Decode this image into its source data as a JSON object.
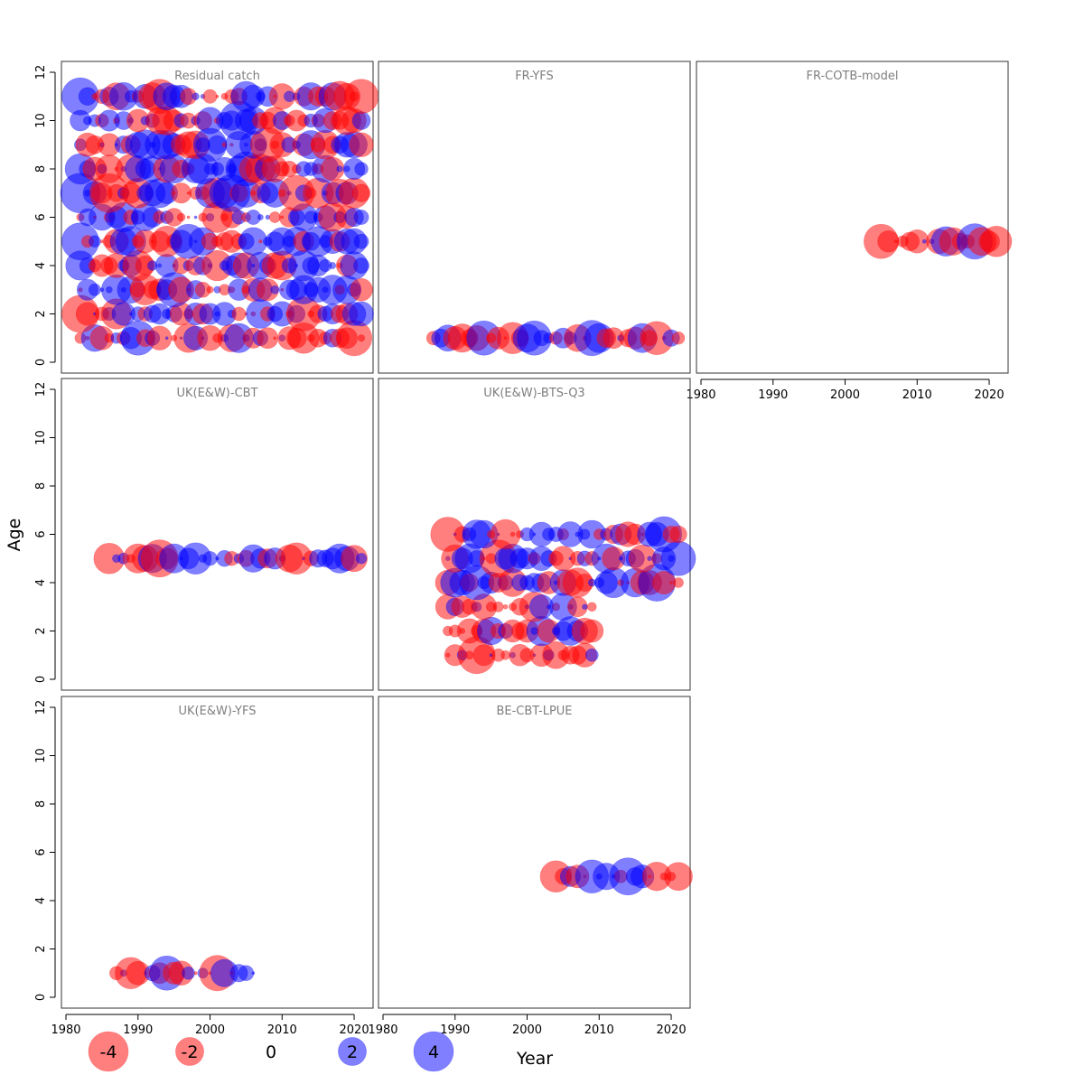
{
  "chart_data": {
    "type": "scatter",
    "subtype": "bubble-residuals",
    "xlabel": "Year",
    "ylabel": "Age",
    "xlim": [
      1980,
      2022
    ],
    "ylim": [
      0,
      12
    ],
    "x_ticks": [
      1980,
      1990,
      2000,
      2010,
      2020
    ],
    "y_ticks": [
      0,
      2,
      4,
      6,
      8,
      10,
      12
    ],
    "colors": {
      "negative": "#ff0000",
      "positive": "#0000ff",
      "opacity": 0.5
    },
    "legend": {
      "placement": "bottom",
      "entries": [
        {
          "label": "-4",
          "value": -4
        },
        {
          "label": "-2",
          "value": -2
        },
        {
          "label": "0",
          "value": 0
        },
        {
          "label": "2",
          "value": 2
        },
        {
          "label": "4",
          "value": 4
        }
      ]
    },
    "panels": [
      {
        "title": "Residual catch",
        "seed": 11,
        "rows": [
          {
            "age": 1,
            "years": [
              1982,
              2021
            ]
          },
          {
            "age": 2,
            "years": [
              1982,
              2021
            ]
          },
          {
            "age": 3,
            "years": [
              1982,
              2021
            ]
          },
          {
            "age": 4,
            "years": [
              1982,
              2021
            ]
          },
          {
            "age": 5,
            "years": [
              1982,
              2021
            ]
          },
          {
            "age": 6,
            "years": [
              1982,
              2021
            ]
          },
          {
            "age": 7,
            "years": [
              1982,
              2021
            ]
          },
          {
            "age": 8,
            "years": [
              1982,
              2021
            ]
          },
          {
            "age": 9,
            "years": [
              1982,
              2021
            ]
          },
          {
            "age": 10,
            "years": [
              1982,
              2021
            ]
          },
          {
            "age": 11,
            "years": [
              1982,
              2021
            ]
          }
        ],
        "notable": [
          {
            "year": 1982,
            "age": 11,
            "value": 3.5
          },
          {
            "year": 1982,
            "age": 7,
            "value": 4
          },
          {
            "year": 1982,
            "age": 5,
            "value": 3.5
          },
          {
            "year": 1982,
            "age": 2,
            "value": -3.5
          },
          {
            "year": 1986,
            "age": 7,
            "value": -3.8
          },
          {
            "year": 2004,
            "age": 10,
            "value": 3.8
          },
          {
            "year": 2003,
            "age": 7,
            "value": 3.5
          },
          {
            "year": 2020,
            "age": 1,
            "value": -3.2
          },
          {
            "year": 2021,
            "age": 11,
            "value": -3.0
          },
          {
            "year": 1993,
            "age": 11,
            "value": -3.0
          },
          {
            "year": 2012,
            "age": 7,
            "value": -3.2
          },
          {
            "year": 2013,
            "age": 2,
            "value": -3.0
          },
          {
            "year": 1997,
            "age": 5,
            "value": 3.0
          },
          {
            "year": 2005,
            "age": 8,
            "value": 3.0
          },
          {
            "year": 1990,
            "age": 1,
            "value": 3.0
          },
          {
            "year": 1995,
            "age": 3,
            "value": 3.0
          },
          {
            "year": 2000,
            "age": 9,
            "value": 2.8
          },
          {
            "year": 2008,
            "age": 9,
            "value": -3.0
          }
        ]
      },
      {
        "title": "FR-YFS",
        "seed": 23,
        "rows": [
          {
            "age": 1,
            "years": [
              1987,
              2021
            ]
          }
        ],
        "notable": [
          {
            "year": 1994,
            "age": 1,
            "value": 3.0
          },
          {
            "year": 2001,
            "age": 1,
            "value": 3.0
          },
          {
            "year": 2009,
            "age": 1,
            "value": 3.2
          },
          {
            "year": 2018,
            "age": 1,
            "value": -2.8
          },
          {
            "year": 1998,
            "age": 1,
            "value": -2.5
          }
        ]
      },
      {
        "title": "FR-COTB-model",
        "seed": 37,
        "rows": [
          {
            "age": 5,
            "years": [
              2005,
              2021
            ]
          }
        ],
        "notable": [
          {
            "year": 2005,
            "age": 5,
            "value": -3.0
          },
          {
            "year": 2018,
            "age": 5,
            "value": 3.2
          },
          {
            "year": 2014,
            "age": 5,
            "value": 2.2
          }
        ]
      },
      {
        "title": "UK(E&W)-CBT",
        "seed": 41,
        "rows": [
          {
            "age": 5,
            "years": [
              1986,
              2021
            ]
          }
        ],
        "notable": [
          {
            "year": 1993,
            "age": 5,
            "value": -3.5
          },
          {
            "year": 1998,
            "age": 5,
            "value": 2.5
          },
          {
            "year": 2012,
            "age": 5,
            "value": -2.5
          }
        ]
      },
      {
        "title": "UK(E&W)-BTS-Q3",
        "seed": 53,
        "rows": [
          {
            "age": 1,
            "years": [
              1989,
              2009
            ]
          },
          {
            "age": 2,
            "years": [
              1989,
              2009
            ]
          },
          {
            "age": 3,
            "years": [
              1989,
              2009
            ]
          },
          {
            "age": 4,
            "years": [
              1989,
              2021
            ]
          },
          {
            "age": 5,
            "years": [
              1989,
              2021
            ]
          },
          {
            "age": 6,
            "years": [
              1989,
              2021
            ]
          }
        ],
        "notable": [
          {
            "year": 1989,
            "age": 6,
            "value": -3.0
          },
          {
            "year": 2019,
            "age": 6,
            "value": 3.2
          },
          {
            "year": 1993,
            "age": 1,
            "value": -3.5
          },
          {
            "year": 2018,
            "age": 4,
            "value": 3.5
          },
          {
            "year": 1996,
            "age": 5,
            "value": -3.5
          },
          {
            "year": 2021,
            "age": 5,
            "value": 3.0
          },
          {
            "year": 1993,
            "age": 4,
            "value": 3.0
          }
        ]
      },
      {
        "title": "UK(E&W)-YFS",
        "seed": 67,
        "rows": [
          {
            "age": 1,
            "years": [
              1987,
              2006
            ]
          }
        ],
        "notable": [
          {
            "year": 1994,
            "age": 1,
            "value": 3.0
          },
          {
            "year": 2001,
            "age": 1,
            "value": -3.2
          },
          {
            "year": 1989,
            "age": 1,
            "value": -2.5
          }
        ]
      },
      {
        "title": "BE-CBT-LPUE",
        "seed": 79,
        "rows": [
          {
            "age": 5,
            "years": [
              2004,
              2021
            ]
          }
        ],
        "notable": [
          {
            "year": 2004,
            "age": 5,
            "value": -2.5
          },
          {
            "year": 2014,
            "age": 5,
            "value": 3.5
          },
          {
            "year": 2009,
            "age": 5,
            "value": 2.8
          },
          {
            "year": 2021,
            "age": 5,
            "value": -2.0
          }
        ]
      }
    ]
  }
}
